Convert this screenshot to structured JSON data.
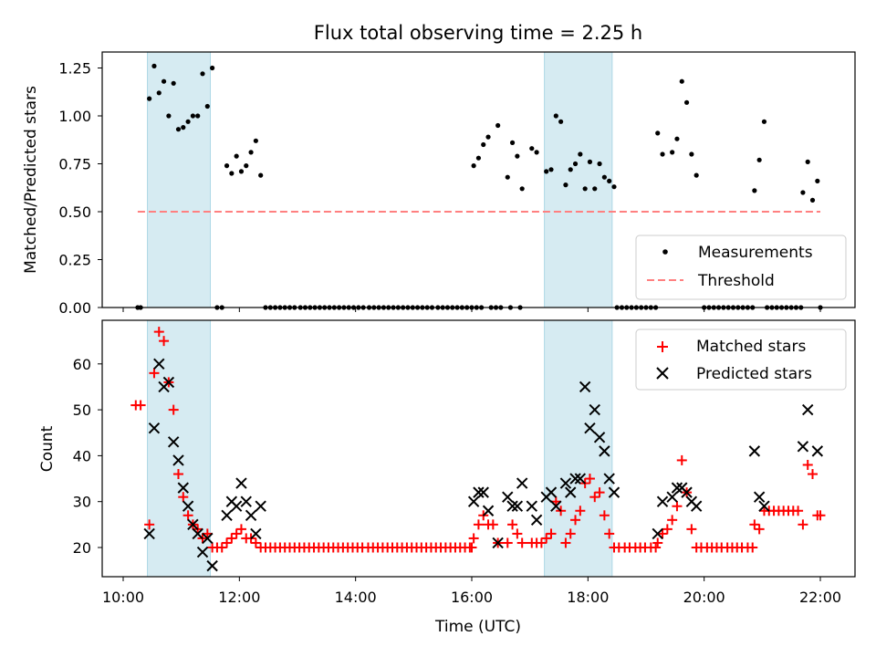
{
  "chart_data": [
    {
      "type": "scatter",
      "title": "Flux total observing time = 2.25 h",
      "xlabel": "",
      "ylabel": "Matched/Predicted stars",
      "xlim": [
        "10:00",
        "22:00"
      ],
      "ylim": [
        0,
        1.3
      ],
      "yticks": [
        "0.00",
        "0.25",
        "0.50",
        "0.75",
        "1.00",
        "1.25"
      ],
      "shaded_intervals": [
        [
          "10:25",
          "11:30"
        ],
        [
          "17:15",
          "18:25"
        ]
      ],
      "legend_position": "lower-right",
      "series": [
        {
          "name": "Measurements",
          "marker": "dot",
          "color": "#000000",
          "points": [
            [
              "10:15",
              0.0
            ],
            [
              "10:18",
              0.0
            ],
            [
              "10:27",
              1.09
            ],
            [
              "10:32",
              1.26
            ],
            [
              "10:37",
              1.12
            ],
            [
              "10:42",
              1.18
            ],
            [
              "10:47",
              1.0
            ],
            [
              "10:52",
              1.17
            ],
            [
              "10:57",
              0.93
            ],
            [
              "11:02",
              0.94
            ],
            [
              "11:07",
              0.97
            ],
            [
              "11:12",
              1.0
            ],
            [
              "11:17",
              1.0
            ],
            [
              "11:22",
              1.22
            ],
            [
              "11:27",
              1.05
            ],
            [
              "11:32",
              1.25
            ],
            [
              "11:37",
              0.0
            ],
            [
              "11:42",
              0.0
            ],
            [
              "11:47",
              0.74
            ],
            [
              "11:52",
              0.7
            ],
            [
              "11:57",
              0.79
            ],
            [
              "12:02",
              0.71
            ],
            [
              "12:07",
              0.74
            ],
            [
              "12:12",
              0.81
            ],
            [
              "12:17",
              0.87
            ],
            [
              "12:22",
              0.69
            ],
            [
              "16:02",
              0.74
            ],
            [
              "16:07",
              0.78
            ],
            [
              "16:12",
              0.85
            ],
            [
              "16:17",
              0.89
            ],
            [
              "16:27",
              0.95
            ],
            [
              "16:37",
              0.68
            ],
            [
              "16:42",
              0.86
            ],
            [
              "16:47",
              0.79
            ],
            [
              "16:52",
              0.62
            ],
            [
              "17:02",
              0.83
            ],
            [
              "17:07",
              0.81
            ],
            [
              "17:17",
              0.71
            ],
            [
              "17:22",
              0.72
            ],
            [
              "17:27",
              1.0
            ],
            [
              "17:32",
              0.97
            ],
            [
              "17:37",
              0.64
            ],
            [
              "17:42",
              0.72
            ],
            [
              "17:47",
              0.75
            ],
            [
              "17:52",
              0.8
            ],
            [
              "17:57",
              0.62
            ],
            [
              "18:02",
              0.76
            ],
            [
              "18:07",
              0.62
            ],
            [
              "18:12",
              0.75
            ],
            [
              "18:17",
              0.68
            ],
            [
              "18:22",
              0.66
            ],
            [
              "18:27",
              0.63
            ],
            [
              "19:12",
              0.91
            ],
            [
              "19:17",
              0.8
            ],
            [
              "19:27",
              0.81
            ],
            [
              "19:32",
              0.88
            ],
            [
              "19:37",
              1.18
            ],
            [
              "19:42",
              1.07
            ],
            [
              "19:47",
              0.8
            ],
            [
              "19:52",
              0.69
            ],
            [
              "20:52",
              0.61
            ],
            [
              "20:57",
              0.77
            ],
            [
              "21:02",
              0.97
            ],
            [
              "21:42",
              0.6
            ],
            [
              "21:47",
              0.76
            ],
            [
              "21:52",
              0.56
            ],
            [
              "21:57",
              0.66
            ],
            [
              "22:00",
              0.0
            ]
          ],
          "zero_runs": [
            [
              "12:27",
              "16:00",
              43
            ],
            [
              "16:05",
              "16:10",
              2
            ],
            [
              "16:20",
              "16:30",
              3
            ],
            [
              "16:40",
              "16:50",
              2
            ],
            [
              "18:30",
              "19:10",
              9
            ],
            [
              "20:00",
              "20:50",
              11
            ],
            [
              "21:05",
              "21:40",
              8
            ]
          ]
        },
        {
          "name": "Threshold",
          "marker": "dashed-line",
          "color": "#ff8080",
          "x": [
            "10:15",
            "22:00"
          ],
          "values": [
            0.5,
            0.5
          ]
        }
      ]
    },
    {
      "type": "scatter",
      "title": "",
      "xlabel": "Time (UTC)",
      "ylabel": "Count",
      "xlim": [
        "10:00",
        "22:00"
      ],
      "ylim": [
        14,
        70
      ],
      "xticks": [
        "10:00",
        "12:00",
        "14:00",
        "16:00",
        "18:00",
        "20:00",
        "22:00"
      ],
      "yticks": [
        "20",
        "30",
        "40",
        "50",
        "60"
      ],
      "shaded_intervals": [
        [
          "10:25",
          "11:30"
        ],
        [
          "17:15",
          "18:25"
        ]
      ],
      "legend_position": "upper-right",
      "series": [
        {
          "name": "Matched stars",
          "marker": "plus",
          "color": "#ff0000",
          "points": [
            [
              "10:13",
              51
            ],
            [
              "10:18",
              51
            ],
            [
              "10:27",
              25
            ],
            [
              "10:32",
              58
            ],
            [
              "10:37",
              67
            ],
            [
              "10:42",
              65
            ],
            [
              "10:47",
              56
            ],
            [
              "10:52",
              50
            ],
            [
              "10:57",
              36
            ],
            [
              "11:02",
              31
            ],
            [
              "11:07",
              27
            ],
            [
              "11:12",
              25
            ],
            [
              "11:17",
              24
            ],
            [
              "11:22",
              22
            ],
            [
              "11:27",
              23
            ],
            [
              "11:32",
              20
            ],
            [
              "11:37",
              20
            ],
            [
              "11:42",
              20
            ],
            [
              "11:47",
              21
            ],
            [
              "11:52",
              22
            ],
            [
              "11:57",
              23
            ],
            [
              "12:02",
              24
            ],
            [
              "12:07",
              22
            ],
            [
              "12:12",
              22
            ],
            [
              "12:17",
              21
            ],
            [
              "12:22",
              20
            ],
            [
              "16:00",
              20
            ],
            [
              "16:02",
              22
            ],
            [
              "16:07",
              25
            ],
            [
              "16:12",
              27
            ],
            [
              "16:17",
              25
            ],
            [
              "16:22",
              25
            ],
            [
              "16:27",
              21
            ],
            [
              "16:37",
              21
            ],
            [
              "16:42",
              25
            ],
            [
              "16:47",
              23
            ],
            [
              "16:52",
              21
            ],
            [
              "17:02",
              21
            ],
            [
              "17:07",
              21
            ],
            [
              "17:12",
              21
            ],
            [
              "17:17",
              22
            ],
            [
              "17:22",
              23
            ],
            [
              "17:27",
              30
            ],
            [
              "17:32",
              28
            ],
            [
              "17:37",
              21
            ],
            [
              "17:42",
              23
            ],
            [
              "17:47",
              26
            ],
            [
              "17:52",
              28
            ],
            [
              "17:57",
              34
            ],
            [
              "18:02",
              35
            ],
            [
              "18:07",
              31
            ],
            [
              "18:12",
              32
            ],
            [
              "18:17",
              27
            ],
            [
              "18:22",
              23
            ],
            [
              "19:12",
              21
            ],
            [
              "19:17",
              23
            ],
            [
              "19:22",
              24
            ],
            [
              "19:27",
              26
            ],
            [
              "19:32",
              29
            ],
            [
              "19:37",
              39
            ],
            [
              "19:42",
              32
            ],
            [
              "19:47",
              24
            ],
            [
              "20:52",
              25
            ],
            [
              "20:57",
              24
            ],
            [
              "21:02",
              28
            ],
            [
              "21:07",
              28
            ],
            [
              "21:12",
              28
            ],
            [
              "21:17",
              28
            ],
            [
              "21:22",
              28
            ],
            [
              "21:27",
              28
            ],
            [
              "21:32",
              28
            ],
            [
              "21:37",
              28
            ],
            [
              "21:42",
              25
            ],
            [
              "21:47",
              38
            ],
            [
              "21:52",
              36
            ],
            [
              "21:57",
              27
            ],
            [
              "22:00",
              27
            ]
          ],
          "flat_runs": [
            [
              "12:27",
              "15:58",
              20,
              43
            ],
            [
              "18:27",
              "19:10",
              20,
              9
            ],
            [
              "19:52",
              "20:50",
              20,
              12
            ]
          ]
        },
        {
          "name": "Predicted stars",
          "marker": "x",
          "color": "#000000",
          "points": [
            [
              "10:27",
              23
            ],
            [
              "10:32",
              46
            ],
            [
              "10:37",
              60
            ],
            [
              "10:42",
              55
            ],
            [
              "10:47",
              56
            ],
            [
              "10:52",
              43
            ],
            [
              "10:57",
              39
            ],
            [
              "11:02",
              33
            ],
            [
              "11:07",
              29
            ],
            [
              "11:12",
              25
            ],
            [
              "11:17",
              23
            ],
            [
              "11:22",
              19
            ],
            [
              "11:27",
              22
            ],
            [
              "11:32",
              16
            ],
            [
              "11:47",
              27
            ],
            [
              "11:52",
              30
            ],
            [
              "11:57",
              29
            ],
            [
              "12:02",
              34
            ],
            [
              "12:07",
              30
            ],
            [
              "12:12",
              27
            ],
            [
              "12:17",
              23
            ],
            [
              "12:22",
              29
            ],
            [
              "16:02",
              30
            ],
            [
              "16:07",
              32
            ],
            [
              "16:12",
              32
            ],
            [
              "16:17",
              28
            ],
            [
              "16:27",
              21
            ],
            [
              "16:37",
              31
            ],
            [
              "16:42",
              29
            ],
            [
              "16:47",
              29
            ],
            [
              "16:52",
              34
            ],
            [
              "17:02",
              29
            ],
            [
              "17:07",
              26
            ],
            [
              "17:17",
              31
            ],
            [
              "17:22",
              32
            ],
            [
              "17:27",
              29
            ],
            [
              "17:37",
              34
            ],
            [
              "17:42",
              32
            ],
            [
              "17:47",
              35
            ],
            [
              "17:52",
              35
            ],
            [
              "17:57",
              55
            ],
            [
              "18:02",
              46
            ],
            [
              "18:07",
              50
            ],
            [
              "18:12",
              44
            ],
            [
              "18:17",
              41
            ],
            [
              "18:22",
              35
            ],
            [
              "18:27",
              32
            ],
            [
              "19:12",
              23
            ],
            [
              "19:17",
              30
            ],
            [
              "19:27",
              31
            ],
            [
              "19:32",
              33
            ],
            [
              "19:37",
              33
            ],
            [
              "19:42",
              32
            ],
            [
              "19:47",
              30
            ],
            [
              "19:52",
              29
            ],
            [
              "20:52",
              41
            ],
            [
              "20:57",
              31
            ],
            [
              "21:02",
              29
            ],
            [
              "21:42",
              42
            ],
            [
              "21:47",
              50
            ],
            [
              "21:57",
              41
            ]
          ]
        }
      ]
    }
  ]
}
